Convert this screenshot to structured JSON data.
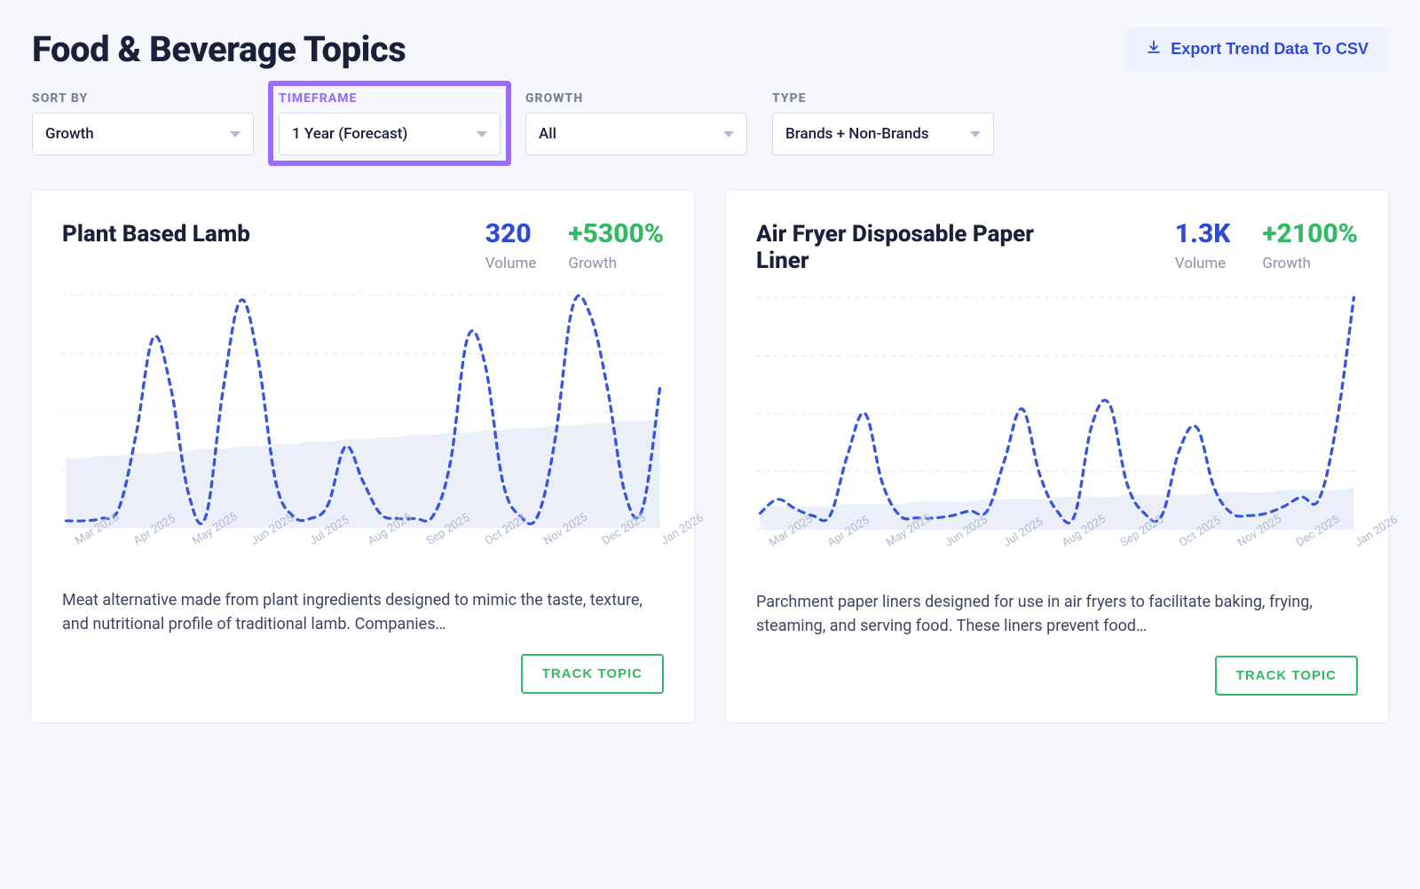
{
  "header": {
    "title": "Food & Beverage Topics",
    "export_label": "Export Trend Data To CSV"
  },
  "colors": {
    "page_bg": "#f5f7fc",
    "text": "#1a1f3a",
    "muted": "#8a91ac",
    "border": "#d8dce9",
    "accent_blue": "#2d4bd6",
    "accent_green": "#33b864",
    "chart_line": "#3a56d8",
    "chart_fill": "#e9edf9",
    "export_bg": "#eef2ff",
    "highlight_border": "#9a6cff",
    "x_label": "#b3b8d0",
    "grid": "#e5e8f2"
  },
  "filters": {
    "sort_by": {
      "label": "SORT BY",
      "value": "Growth",
      "highlighted": false
    },
    "timeframe": {
      "label": "TIMEFRAME",
      "value": "1 Year (Forecast)",
      "highlighted": true
    },
    "growth": {
      "label": "GROWTH",
      "value": "All",
      "highlighted": false
    },
    "type": {
      "label": "TYPE",
      "value": "Brands + Non-Brands",
      "highlighted": false
    }
  },
  "cards": [
    {
      "title": "Plant Based Lamb",
      "volume": "320",
      "growth": "+5300%",
      "volume_label": "Volume",
      "growth_label": "Growth",
      "description": "Meat alternative made from plant ingredients designed to mimic the taste, texture, and nutritional profile of traditional lamb. Companies…",
      "track_label": "TRACK TOPIC",
      "chart": {
        "type": "line",
        "ylim": [
          0,
          100
        ],
        "grid_y": [
          0,
          25,
          50,
          75,
          100
        ],
        "line_color": "#3a56d8",
        "line_dash": "6 6",
        "line_width": 3,
        "fill_color": "#e9edf9",
        "fill_opacity": 0.9,
        "fill_series": [
          30,
          30,
          31,
          31,
          32,
          32,
          33,
          33,
          34,
          34,
          35,
          35,
          36,
          36,
          37,
          37,
          38,
          38,
          39,
          39,
          40,
          40,
          41,
          41,
          42,
          42,
          43,
          43,
          44,
          44,
          45,
          45,
          46,
          46,
          47
        ],
        "x_labels": [
          "Mar 2025",
          "Apr 2025",
          "May 2025",
          "Jun 2025",
          "Jul 2025",
          "Aug 2025",
          "Sep 2025",
          "Oct 2025",
          "Nov 2025",
          "Dec 2025",
          "Jan 2026"
        ],
        "series": [
          3,
          3,
          4,
          8,
          40,
          82,
          60,
          15,
          5,
          60,
          98,
          72,
          20,
          5,
          4,
          10,
          35,
          20,
          6,
          4,
          4,
          5,
          28,
          82,
          70,
          20,
          5,
          5,
          38,
          95,
          92,
          60,
          15,
          8,
          60
        ]
      }
    },
    {
      "title": "Air Fryer Disposable Paper Liner",
      "volume": "1.3K",
      "growth": "+2100%",
      "volume_label": "Volume",
      "growth_label": "Growth",
      "description": "Parchment paper liners designed for use in air fryers to facilitate baking, frying, steaming, and serving food. These liners prevent food…",
      "track_label": "TRACK TOPIC",
      "chart": {
        "type": "line",
        "ylim": [
          0,
          100
        ],
        "grid_y": [
          0,
          25,
          50,
          75,
          100
        ],
        "line_color": "#3a56d8",
        "line_dash": "6 6",
        "line_width": 3,
        "fill_color": "#e9edf9",
        "fill_opacity": 0.9,
        "fill_series": [
          10,
          10,
          10,
          10,
          10,
          11,
          11,
          11,
          11,
          12,
          12,
          12,
          12,
          13,
          13,
          13,
          13,
          14,
          14,
          14,
          14,
          15,
          15,
          15,
          15,
          15,
          16,
          16,
          16,
          16,
          17,
          17,
          17,
          17,
          18
        ],
        "x_labels": [
          "Mar 2025",
          "Apr 2025",
          "May 2025",
          "Jun 2025",
          "Jul 2025",
          "Aug 2025",
          "Sep 2025",
          "Oct 2025",
          "Nov 2025",
          "Dec 2025",
          "Jan 2026"
        ],
        "series": [
          7,
          13,
          9,
          6,
          6,
          32,
          50,
          20,
          6,
          5,
          5,
          6,
          8,
          8,
          30,
          52,
          24,
          8,
          6,
          45,
          54,
          20,
          7,
          6,
          34,
          44,
          18,
          7,
          6,
          7,
          10,
          14,
          13,
          45,
          100
        ]
      }
    }
  ]
}
